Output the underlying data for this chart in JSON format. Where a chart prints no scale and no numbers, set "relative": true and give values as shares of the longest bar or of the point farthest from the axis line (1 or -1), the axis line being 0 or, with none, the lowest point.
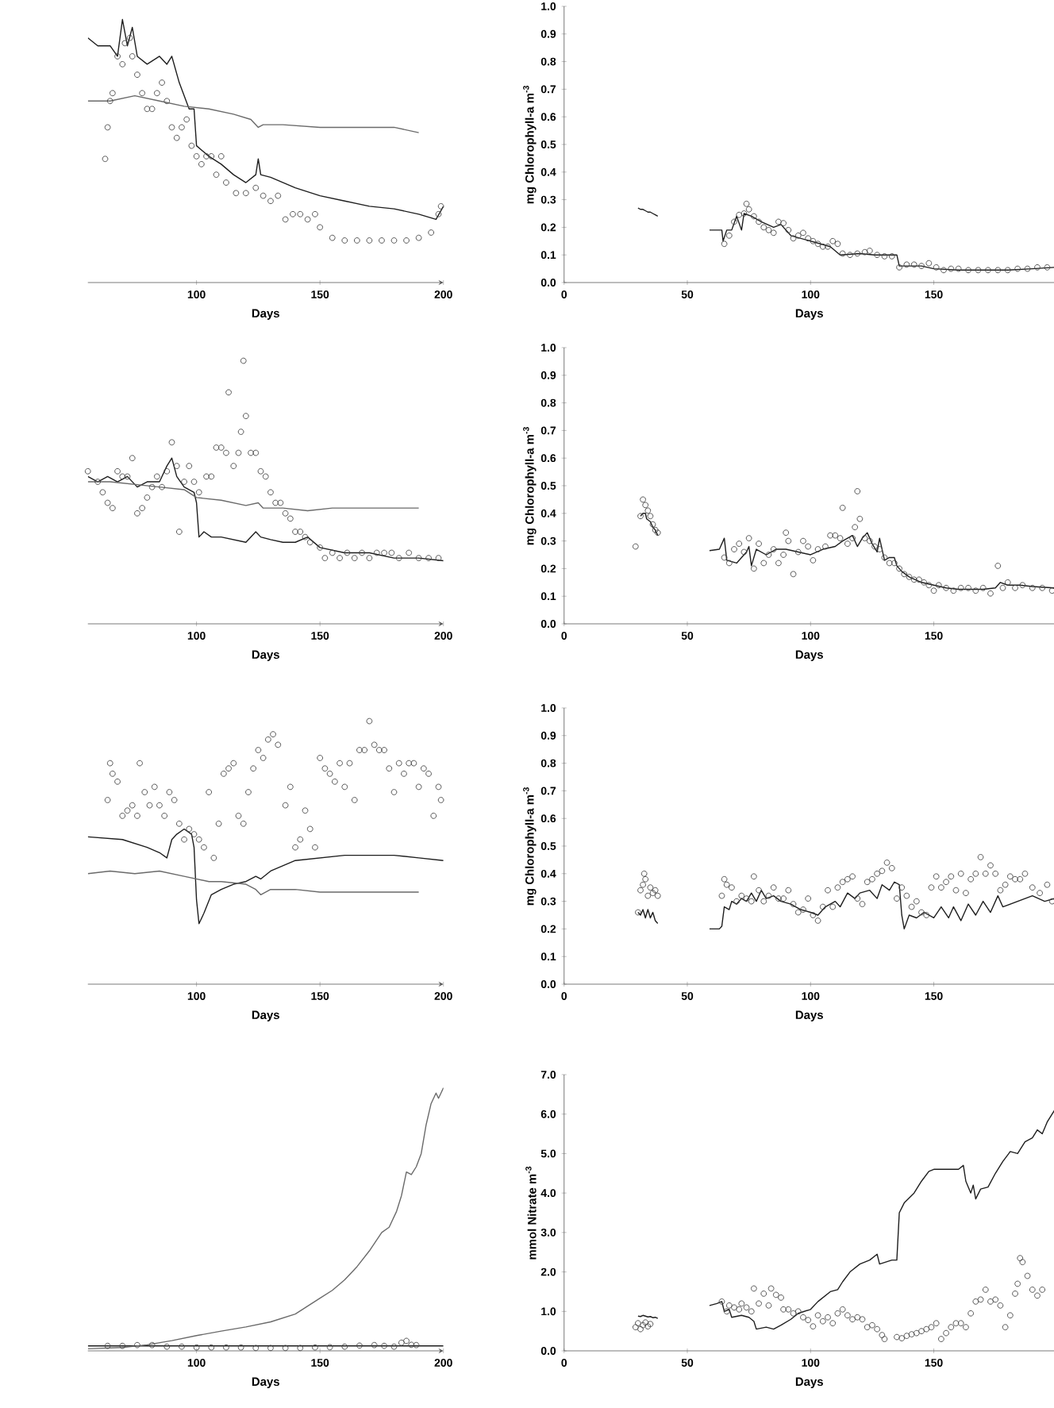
{
  "chart_data": [
    {
      "type": "line",
      "xlabel": "Days",
      "xlim": [
        56,
        200
      ],
      "xticks": [
        100,
        150,
        200
      ],
      "relative": true,
      "tick_labels": "x",
      "series": [
        {
          "color": "#1e1e1e",
          "x": [
            56,
            60,
            65,
            68,
            70,
            72,
            74,
            76,
            80,
            85,
            88,
            90,
            93,
            97,
            99,
            100,
            105,
            110,
            115,
            120,
            124,
            125,
            126,
            130,
            140,
            150,
            160,
            170,
            180,
            190,
            197,
            200
          ],
          "values": [
            0.93,
            0.9,
            0.9,
            0.86,
            1,
            0.9,
            0.97,
            0.86,
            0.83,
            0.86,
            0.83,
            0.86,
            0.76,
            0.66,
            0.66,
            0.52,
            0.48,
            0.45,
            0.41,
            0.38,
            0.41,
            0.47,
            0.41,
            0.4,
            0.36,
            0.33,
            0.31,
            0.29,
            0.28,
            0.26,
            0.24,
            0.29
          ]
        },
        {
          "color": "#6a6a6a",
          "x": [
            56,
            65,
            75,
            85,
            95,
            105,
            115,
            122,
            125,
            127,
            135,
            150,
            165,
            180,
            190
          ],
          "values": [
            0.69,
            0.69,
            0.71,
            0.69,
            0.67,
            0.66,
            0.64,
            0.62,
            0.59,
            0.6,
            0.6,
            0.59,
            0.59,
            0.59,
            0.57
          ]
        },
        {
          "type": "scatter",
          "marker": "circle",
          "color": "#444444",
          "x": [
            63,
            64,
            65,
            66,
            68,
            70,
            71,
            73,
            74,
            76,
            78,
            80,
            82,
            84,
            86,
            88,
            90,
            92,
            94,
            96,
            98,
            100,
            102,
            104,
            106,
            108,
            110,
            112,
            116,
            120,
            124,
            127,
            130,
            133,
            136,
            139,
            142,
            145,
            148,
            150,
            155,
            160,
            165,
            170,
            175,
            180,
            185,
            190,
            195,
            198,
            199
          ],
          "values": [
            0.47,
            0.59,
            0.69,
            0.72,
            0.86,
            0.83,
            0.91,
            0.93,
            0.86,
            0.79,
            0.72,
            0.66,
            0.66,
            0.72,
            0.76,
            0.69,
            0.59,
            0.55,
            0.59,
            0.62,
            0.52,
            0.48,
            0.45,
            0.48,
            0.48,
            0.41,
            0.48,
            0.38,
            0.34,
            0.34,
            0.36,
            0.33,
            0.31,
            0.33,
            0.24,
            0.26,
            0.26,
            0.24,
            0.26,
            0.21,
            0.17,
            0.16,
            0.16,
            0.16,
            0.16,
            0.16,
            0.16,
            0.17,
            0.19,
            0.26,
            0.29
          ]
        }
      ]
    },
    {
      "type": "line",
      "xlabel": "Days",
      "ylabel": "mg Chlorophyll-a m$^{-3}$",
      "xlim": [
        0,
        199
      ],
      "xticks": [
        0,
        50,
        100,
        150
      ],
      "ylim": [
        0,
        1
      ],
      "yticks": [
        {
          "value": 0,
          "label": "0.0"
        },
        0.1,
        0.2,
        0.3,
        0.4,
        0.5,
        0.6,
        0.7,
        0.8,
        0.9,
        {
          "value": 1,
          "label": "1.0"
        }
      ],
      "series": [
        {
          "color": "#1e1e1e",
          "x": [
            30,
            31,
            32,
            33,
            34,
            35,
            36,
            37,
            38,
            48,
            59,
            64,
            64.5,
            66,
            68,
            70,
            72,
            73,
            76,
            80,
            85,
            88,
            92,
            100,
            108,
            112,
            120,
            126,
            135,
            136,
            145,
            150,
            160,
            170,
            180,
            190,
            199
          ],
          "values": [
            0.27,
            0.265,
            0.265,
            0.26,
            0.255,
            0.255,
            0.25,
            0.245,
            0.24,
            null,
            0.19,
            0.19,
            0.15,
            0.19,
            0.19,
            0.24,
            0.19,
            0.25,
            0.24,
            0.22,
            0.2,
            0.21,
            0.17,
            0.15,
            0.13,
            0.1,
            0.105,
            0.1,
            0.1,
            0.06,
            0.06,
            0.05,
            0.045,
            0.045,
            0.045,
            0.05,
            0.055
          ]
        },
        {
          "type": "scatter",
          "marker": "circle",
          "color": "#444444",
          "x": [
            65,
            67,
            69,
            71,
            73,
            74,
            75,
            77,
            79,
            81,
            83,
            85,
            87,
            89,
            91,
            93,
            95,
            97,
            99,
            101,
            103,
            105,
            107,
            109,
            111,
            113,
            116,
            119,
            122,
            124,
            127,
            130,
            133,
            136,
            139,
            142,
            145,
            148,
            151,
            154,
            157,
            160,
            164,
            168,
            172,
            176,
            180,
            184,
            188,
            192,
            196
          ],
          "values": [
            0.14,
            0.17,
            0.22,
            0.245,
            0.25,
            0.285,
            0.265,
            0.24,
            0.22,
            0.2,
            0.19,
            0.18,
            0.22,
            0.215,
            0.19,
            0.16,
            0.17,
            0.18,
            0.16,
            0.15,
            0.14,
            0.13,
            0.13,
            0.15,
            0.14,
            0.105,
            0.1,
            0.105,
            0.11,
            0.115,
            0.1,
            0.095,
            0.095,
            0.055,
            0.065,
            0.065,
            0.06,
            0.07,
            0.055,
            0.045,
            0.05,
            0.05,
            0.045,
            0.045,
            0.045,
            0.045,
            0.045,
            0.05,
            0.05,
            0.055,
            0.055
          ]
        }
      ]
    },
    {
      "type": "line",
      "xlabel": "Days",
      "xlim": [
        56,
        200
      ],
      "xticks": [
        100,
        150,
        200
      ],
      "relative": true,
      "tick_labels": "x",
      "series": [
        {
          "color": "#1e1e1e",
          "x": [
            56,
            60,
            64,
            68,
            72,
            76,
            80,
            85,
            88,
            90,
            92,
            95,
            99,
            100,
            101,
            103,
            106,
            110,
            115,
            120,
            124,
            126,
            130,
            135,
            140,
            145,
            150,
            160,
            170,
            180,
            190,
            200
          ],
          "values": [
            0.56,
            0.54,
            0.56,
            0.54,
            0.56,
            0.52,
            0.54,
            0.54,
            0.6,
            0.63,
            0.56,
            0.52,
            0.5,
            0.46,
            0.33,
            0.35,
            0.33,
            0.33,
            0.32,
            0.31,
            0.35,
            0.33,
            0.32,
            0.31,
            0.31,
            0.33,
            0.29,
            0.27,
            0.27,
            0.25,
            0.25,
            0.24
          ]
        },
        {
          "color": "#6a6a6a",
          "x": [
            56,
            65,
            75,
            85,
            95,
            100,
            110,
            120,
            125,
            127,
            135,
            145,
            155,
            165,
            175,
            180,
            190
          ],
          "values": [
            0.54,
            0.54,
            0.53,
            0.52,
            0.51,
            0.48,
            0.47,
            0.45,
            0.46,
            0.44,
            0.44,
            0.43,
            0.44,
            0.44,
            0.44,
            0.44,
            0.44
          ]
        },
        {
          "type": "scatter",
          "marker": "circle",
          "color": "#444444",
          "x": [
            56,
            60,
            62,
            64,
            66,
            68,
            70,
            72,
            74,
            76,
            78,
            80,
            82,
            84,
            86,
            88,
            90,
            92,
            93,
            95,
            97,
            99,
            101,
            104,
            106,
            108,
            110,
            112,
            113,
            115,
            117,
            118,
            119,
            120,
            122,
            124,
            126,
            128,
            130,
            132,
            134,
            136,
            138,
            140,
            142,
            144,
            146,
            150,
            152,
            155,
            158,
            161,
            164,
            167,
            170,
            173,
            176,
            179,
            182,
            186,
            190,
            194,
            198
          ],
          "values": [
            0.58,
            0.54,
            0.5,
            0.46,
            0.44,
            0.58,
            0.56,
            0.56,
            0.63,
            0.42,
            0.44,
            0.48,
            0.52,
            0.56,
            0.52,
            0.58,
            0.69,
            0.6,
            0.35,
            0.54,
            0.6,
            0.54,
            0.5,
            0.56,
            0.56,
            0.67,
            0.67,
            0.65,
            0.88,
            0.6,
            0.65,
            0.73,
            1,
            0.79,
            0.65,
            0.65,
            0.58,
            0.56,
            0.5,
            0.46,
            0.46,
            0.42,
            0.4,
            0.35,
            0.35,
            0.33,
            0.31,
            0.29,
            0.25,
            0.27,
            0.25,
            0.27,
            0.25,
            0.27,
            0.25,
            0.27,
            0.27,
            0.27,
            0.25,
            0.27,
            0.25,
            0.25,
            0.25
          ]
        }
      ]
    },
    {
      "type": "line",
      "xlabel": "Days",
      "ylabel": "mg Chlorophyll-a m$^{-3}$",
      "xlim": [
        0,
        199
      ],
      "xticks": [
        0,
        50,
        100,
        150
      ],
      "ylim": [
        0,
        1
      ],
      "yticks": [
        {
          "value": 0,
          "label": "0.0"
        },
        0.1,
        0.2,
        0.3,
        0.4,
        0.5,
        0.6,
        0.7,
        0.8,
        0.9,
        {
          "value": 1,
          "label": "1.0"
        }
      ],
      "series": [
        {
          "color": "#1e1e1e",
          "x": [
            31,
            32,
            33,
            33.5,
            35,
            36,
            37,
            38,
            48,
            59,
            63,
            65,
            66,
            70,
            74,
            75,
            76,
            78,
            82,
            86,
            90,
            95,
            100,
            105,
            110,
            113,
            117,
            119,
            121,
            123,
            125,
            127,
            128,
            130,
            132,
            134,
            135,
            137,
            140,
            145,
            150,
            155,
            160,
            165,
            170,
            175,
            177,
            180,
            185,
            190,
            199
          ],
          "values": [
            0.39,
            0.4,
            0.4,
            0.38,
            0.37,
            0.35,
            0.34,
            0.32,
            null,
            0.265,
            0.27,
            0.31,
            0.23,
            0.22,
            0.26,
            0.28,
            0.21,
            0.27,
            0.25,
            0.27,
            0.27,
            0.26,
            0.25,
            0.27,
            0.28,
            0.3,
            0.32,
            0.28,
            0.31,
            0.33,
            0.29,
            0.26,
            0.31,
            0.23,
            0.24,
            0.24,
            0.21,
            0.19,
            0.17,
            0.15,
            0.14,
            0.13,
            0.125,
            0.125,
            0.125,
            0.13,
            0.15,
            0.14,
            0.14,
            0.135,
            0.13
          ]
        },
        {
          "type": "scatter",
          "marker": "circle",
          "color": "#444444",
          "x": [
            29,
            31,
            32,
            33,
            34,
            35,
            36,
            37,
            38,
            65,
            67,
            69,
            71,
            73,
            75,
            77,
            79,
            81,
            83,
            85,
            87,
            89,
            90,
            91,
            93,
            95,
            97,
            99,
            101,
            103,
            106,
            108,
            110,
            112,
            113,
            115,
            117,
            118,
            119,
            120,
            122,
            124,
            126,
            128,
            130,
            132,
            134,
            136,
            138,
            140,
            142,
            144,
            146,
            148,
            150,
            152,
            155,
            158,
            161,
            164,
            167,
            170,
            173,
            176,
            178,
            180,
            183,
            186,
            190,
            194,
            198
          ],
          "values": [
            0.28,
            0.39,
            0.45,
            0.43,
            0.41,
            0.39,
            0.36,
            0.34,
            0.33,
            0.24,
            0.22,
            0.27,
            0.29,
            0.26,
            0.31,
            0.2,
            0.29,
            0.22,
            0.25,
            0.27,
            0.22,
            0.25,
            0.33,
            0.3,
            0.18,
            0.26,
            0.3,
            0.28,
            0.23,
            0.27,
            0.28,
            0.32,
            0.32,
            0.31,
            0.42,
            0.29,
            0.31,
            0.35,
            0.48,
            0.38,
            0.31,
            0.3,
            0.28,
            0.27,
            0.24,
            0.22,
            0.22,
            0.2,
            0.18,
            0.17,
            0.16,
            0.16,
            0.15,
            0.14,
            0.12,
            0.14,
            0.13,
            0.12,
            0.13,
            0.13,
            0.12,
            0.13,
            0.11,
            0.21,
            0.13,
            0.15,
            0.13,
            0.14,
            0.13,
            0.13,
            0.12
          ]
        }
      ]
    },
    {
      "type": "line",
      "xlabel": "Days",
      "xlim": [
        56,
        200
      ],
      "xticks": [
        100,
        150,
        200
      ],
      "relative": true,
      "tick_labels": "x",
      "series": [
        {
          "color": "#1e1e1e",
          "x": [
            56,
            70,
            80,
            85,
            88,
            90,
            92,
            95,
            98,
            99,
            100,
            101,
            103,
            106,
            110,
            115,
            120,
            124,
            126,
            130,
            140,
            150,
            160,
            170,
            180,
            190,
            200
          ],
          "values": [
            0.56,
            0.55,
            0.52,
            0.5,
            0.48,
            0.55,
            0.57,
            0.59,
            0.57,
            0.52,
            0.32,
            0.23,
            0.27,
            0.34,
            0.36,
            0.38,
            0.39,
            0.41,
            0.4,
            0.43,
            0.47,
            0.48,
            0.49,
            0.49,
            0.49,
            0.48,
            0.47
          ]
        },
        {
          "color": "#6a6a6a",
          "x": [
            56,
            65,
            75,
            85,
            95,
            100,
            105,
            110,
            120,
            124,
            126,
            130,
            140,
            150,
            160,
            170,
            180,
            190
          ],
          "values": [
            0.42,
            0.43,
            0.42,
            0.43,
            0.41,
            0.4,
            0.39,
            0.39,
            0.38,
            0.36,
            0.34,
            0.36,
            0.36,
            0.35,
            0.35,
            0.35,
            0.35,
            0.35
          ]
        },
        {
          "type": "scatter",
          "marker": "circle",
          "color": "#444444",
          "x": [
            64,
            65,
            66,
            68,
            70,
            72,
            74,
            76,
            77,
            79,
            81,
            83,
            85,
            87,
            89,
            91,
            93,
            95,
            97,
            99,
            101,
            103,
            105,
            107,
            109,
            111,
            113,
            115,
            117,
            119,
            121,
            123,
            125,
            127,
            129,
            131,
            133,
            136,
            138,
            140,
            142,
            144,
            146,
            148,
            150,
            152,
            154,
            156,
            158,
            160,
            162,
            164,
            166,
            168,
            170,
            172,
            174,
            176,
            178,
            180,
            182,
            184,
            186,
            188,
            190,
            192,
            194,
            196,
            198,
            199
          ],
          "values": [
            0.7,
            0.84,
            0.8,
            0.77,
            0.64,
            0.66,
            0.68,
            0.64,
            0.84,
            0.73,
            0.68,
            0.75,
            0.68,
            0.64,
            0.73,
            0.7,
            0.61,
            0.55,
            0.59,
            0.57,
            0.55,
            0.52,
            0.73,
            0.48,
            0.61,
            0.8,
            0.82,
            0.84,
            0.64,
            0.61,
            0.73,
            0.82,
            0.89,
            0.86,
            0.93,
            0.95,
            0.91,
            0.68,
            0.75,
            0.52,
            0.55,
            0.66,
            0.59,
            0.52,
            0.86,
            0.82,
            0.8,
            0.77,
            0.84,
            0.75,
            0.84,
            0.7,
            0.89,
            0.89,
            1,
            0.91,
            0.89,
            0.89,
            0.82,
            0.73,
            0.84,
            0.8,
            0.84,
            0.84,
            0.75,
            0.82,
            0.8,
            0.64,
            0.75,
            0.7
          ]
        }
      ]
    },
    {
      "type": "line",
      "xlabel": "Days",
      "ylabel": "mg Chlorophyll-a m$^{-3}$",
      "xlim": [
        0,
        199
      ],
      "xticks": [
        0,
        50,
        100,
        150
      ],
      "ylim": [
        0,
        1
      ],
      "yticks": [
        {
          "value": 0,
          "label": "0.0"
        },
        0.1,
        0.2,
        0.3,
        0.4,
        0.5,
        0.6,
        0.7,
        0.8,
        0.9,
        {
          "value": 1,
          "label": "1.0"
        }
      ],
      "series": [
        {
          "color": "#1e1e1e",
          "x": [
            30,
            31,
            32,
            33,
            34,
            35,
            36,
            37,
            38,
            48,
            59,
            63,
            64,
            65,
            67,
            68,
            70,
            72,
            74,
            76,
            78,
            80,
            82,
            85,
            88,
            92,
            96,
            100,
            103,
            106,
            110,
            112,
            115,
            118,
            120,
            124,
            127,
            129,
            132,
            134,
            136,
            137,
            138,
            140,
            143,
            146,
            150,
            153,
            156,
            158,
            161,
            164,
            167,
            170,
            173,
            176,
            178,
            184,
            190,
            195,
            199
          ],
          "values": [
            0.26,
            0.25,
            0.27,
            0.24,
            0.27,
            0.24,
            0.26,
            0.23,
            0.22,
            null,
            0.2,
            0.2,
            0.21,
            0.28,
            0.27,
            0.3,
            0.29,
            0.31,
            0.3,
            0.33,
            0.3,
            0.34,
            0.31,
            0.32,
            0.3,
            0.29,
            0.27,
            0.26,
            0.25,
            0.28,
            0.3,
            0.28,
            0.33,
            0.31,
            0.33,
            0.34,
            0.31,
            0.36,
            0.34,
            0.37,
            0.36,
            0.25,
            0.2,
            0.25,
            0.24,
            0.26,
            0.24,
            0.28,
            0.24,
            0.28,
            0.23,
            0.29,
            0.25,
            0.3,
            0.26,
            0.32,
            0.28,
            0.3,
            0.32,
            0.3,
            0.31
          ]
        },
        {
          "type": "scatter",
          "marker": "circle",
          "color": "#444444",
          "x": [
            30,
            31,
            32,
            32.5,
            33,
            34,
            35,
            36,
            37,
            38,
            64,
            65,
            66,
            68,
            70,
            72,
            74,
            76,
            77,
            79,
            81,
            83,
            85,
            87,
            89,
            91,
            93,
            95,
            97,
            99,
            101,
            103,
            105,
            107,
            109,
            111,
            113,
            115,
            117,
            119,
            121,
            123,
            125,
            127,
            129,
            131,
            133,
            135,
            137,
            139,
            141,
            143,
            145,
            147,
            149,
            151,
            153,
            155,
            157,
            159,
            161,
            163,
            165,
            167,
            169,
            171,
            173,
            175,
            177,
            179,
            181,
            183,
            185,
            187,
            190,
            193,
            196,
            198
          ],
          "values": [
            0.26,
            0.34,
            0.36,
            0.4,
            0.38,
            0.32,
            0.35,
            0.33,
            0.34,
            0.32,
            0.32,
            0.38,
            0.36,
            0.35,
            0.3,
            0.32,
            0.31,
            0.3,
            0.39,
            0.34,
            0.3,
            0.32,
            0.35,
            0.31,
            0.31,
            0.34,
            0.29,
            0.26,
            0.27,
            0.31,
            0.25,
            0.23,
            0.28,
            0.34,
            0.28,
            0.35,
            0.37,
            0.38,
            0.39,
            0.31,
            0.29,
            0.37,
            0.38,
            0.4,
            0.41,
            0.44,
            0.42,
            0.31,
            0.35,
            0.32,
            0.28,
            0.3,
            0.26,
            0.25,
            0.35,
            0.39,
            0.35,
            0.37,
            0.39,
            0.34,
            0.4,
            0.33,
            0.38,
            0.4,
            0.46,
            0.4,
            0.43,
            0.4,
            0.34,
            0.36,
            0.39,
            0.38,
            0.38,
            0.4,
            0.35,
            0.33,
            0.36,
            0.3
          ]
        }
      ]
    },
    {
      "type": "line",
      "xlabel": "Days",
      "xlim": [
        56,
        200
      ],
      "xticks": [
        100,
        150,
        200
      ],
      "relative": true,
      "tick_labels": "x",
      "series": [
        {
          "color": "#1e1e1e",
          "x": [
            56,
            100,
            150,
            200
          ],
          "values": [
            0.019,
            0.019,
            0.019,
            0.019
          ]
        },
        {
          "color": "#6a6a6a",
          "x": [
            56,
            70,
            80,
            90,
            100,
            110,
            120,
            130,
            140,
            145,
            150,
            155,
            160,
            165,
            170,
            175,
            178,
            181,
            183,
            185,
            187,
            189,
            191,
            193,
            195,
            197,
            198,
            199,
            200
          ],
          "values": [
            0.008,
            0.013,
            0.023,
            0.039,
            0.058,
            0.075,
            0.091,
            0.11,
            0.14,
            0.17,
            0.2,
            0.23,
            0.27,
            0.32,
            0.38,
            0.45,
            0.47,
            0.53,
            0.59,
            0.68,
            0.67,
            0.7,
            0.75,
            0.86,
            0.94,
            0.98,
            0.96,
            0.98,
            1
          ]
        },
        {
          "type": "scatter",
          "marker": "circle",
          "color": "#444444",
          "x": [
            64,
            70,
            76,
            82,
            88,
            94,
            100,
            106,
            112,
            118,
            124,
            130,
            136,
            142,
            148,
            154,
            160,
            166,
            172,
            176,
            180,
            183,
            185,
            187,
            189
          ],
          "values": [
            0.019,
            0.019,
            0.022,
            0.022,
            0.016,
            0.016,
            0.013,
            0.013,
            0.013,
            0.013,
            0.011,
            0.011,
            0.011,
            0.011,
            0.013,
            0.014,
            0.016,
            0.02,
            0.022,
            0.019,
            0.016,
            0.031,
            0.038,
            0.023,
            0.022
          ]
        }
      ]
    },
    {
      "type": "line",
      "xlabel": "Days",
      "ylabel": "mmol Nitrate m$^{-3}$",
      "xlim": [
        0,
        199
      ],
      "xticks": [
        0,
        50,
        100,
        150
      ],
      "ylim": [
        0,
        7
      ],
      "yticks": [
        {
          "value": 0,
          "label": "0.0"
        },
        {
          "value": 1,
          "label": "1.0"
        },
        {
          "value": 2,
          "label": "2.0"
        },
        {
          "value": 3,
          "label": "3.0"
        },
        {
          "value": 4,
          "label": "4.0"
        },
        {
          "value": 5,
          "label": "5.0"
        },
        {
          "value": 6,
          "label": "6.0"
        },
        {
          "value": 7,
          "label": "7.0"
        }
      ],
      "series": [
        {
          "color": "#1e1e1e",
          "x": [
            30,
            31,
            32,
            33,
            34,
            35,
            36,
            37,
            38,
            48,
            59,
            62,
            64,
            65,
            67,
            68,
            72,
            75,
            77,
            78,
            82,
            85,
            88,
            92,
            95,
            100,
            103,
            108,
            111,
            113,
            116,
            120,
            124,
            127,
            128,
            133,
            135,
            136,
            138,
            142,
            145,
            148,
            150,
            155,
            160,
            162,
            163,
            165,
            166,
            167,
            169,
            172,
            175,
            178,
            181,
            184,
            187,
            190,
            192,
            194,
            196,
            199
          ],
          "values": [
            0.88,
            0.87,
            0.9,
            0.88,
            0.86,
            0.87,
            0.84,
            0.85,
            0.82,
            null,
            1.15,
            1.2,
            1.25,
            1.0,
            1.05,
            0.85,
            0.9,
            0.85,
            0.75,
            0.55,
            0.6,
            0.55,
            0.65,
            0.8,
            0.95,
            1.05,
            1.25,
            1.5,
            1.55,
            1.75,
            2.0,
            2.2,
            2.3,
            2.45,
            2.2,
            2.3,
            2.3,
            3.5,
            3.75,
            4.0,
            4.3,
            4.55,
            4.6,
            4.6,
            4.6,
            4.7,
            4.3,
            4.0,
            4.2,
            3.85,
            4.1,
            4.15,
            4.5,
            4.8,
            5.05,
            5.0,
            5.3,
            5.4,
            5.6,
            5.5,
            5.8,
            6.1
          ]
        },
        {
          "type": "scatter",
          "marker": "circle",
          "color": "#444444",
          "x": [
            29,
            30,
            31,
            32,
            33,
            34,
            35,
            64,
            66,
            67,
            69,
            71,
            72,
            74,
            76,
            77,
            79,
            81,
            83,
            84,
            86,
            88,
            89,
            91,
            93,
            95,
            97,
            99,
            101,
            103,
            105,
            107,
            109,
            111,
            113,
            115,
            117,
            119,
            121,
            123,
            125,
            127,
            129,
            130,
            135,
            137,
            139,
            141,
            143,
            145,
            147,
            149,
            151,
            153,
            155,
            157,
            159,
            161,
            163,
            165,
            167,
            169,
            171,
            173,
            175,
            177,
            179,
            181,
            183,
            184,
            185,
            186,
            188,
            190,
            192,
            194
          ],
          "values": [
            0.6,
            0.7,
            0.55,
            0.65,
            0.72,
            0.62,
            0.68,
            1.25,
            1.0,
            1.15,
            1.1,
            1.05,
            1.2,
            1.1,
            1.0,
            1.58,
            1.2,
            1.45,
            1.15,
            1.58,
            1.42,
            1.35,
            1.05,
            1.05,
            0.95,
            1.0,
            0.85,
            0.78,
            0.62,
            0.9,
            0.75,
            0.85,
            0.7,
            0.95,
            1.05,
            0.9,
            0.8,
            0.85,
            0.8,
            0.6,
            0.65,
            0.55,
            0.4,
            0.3,
            0.35,
            0.32,
            0.38,
            0.42,
            0.45,
            0.5,
            0.55,
            0.6,
            0.7,
            0.3,
            0.45,
            0.6,
            0.7,
            0.7,
            0.6,
            0.95,
            1.25,
            1.3,
            1.55,
            1.25,
            1.3,
            1.15,
            0.6,
            0.9,
            1.45,
            1.7,
            2.35,
            2.25,
            1.9,
            1.55,
            1.4,
            1.55
          ]
        }
      ]
    }
  ]
}
